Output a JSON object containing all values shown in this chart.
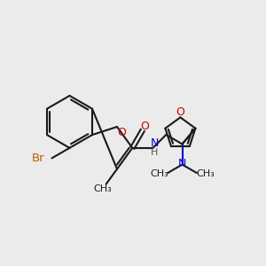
{
  "background_color": "#ebebeb",
  "bond_color": "#1a1a1a",
  "o_color": "#cc0000",
  "n_color": "#0000cc",
  "br_color": "#b85c00",
  "figsize": [
    3.0,
    3.0
  ],
  "dpi": 100,
  "xlim": [
    10,
    290
  ],
  "ylim": [
    10,
    290
  ]
}
